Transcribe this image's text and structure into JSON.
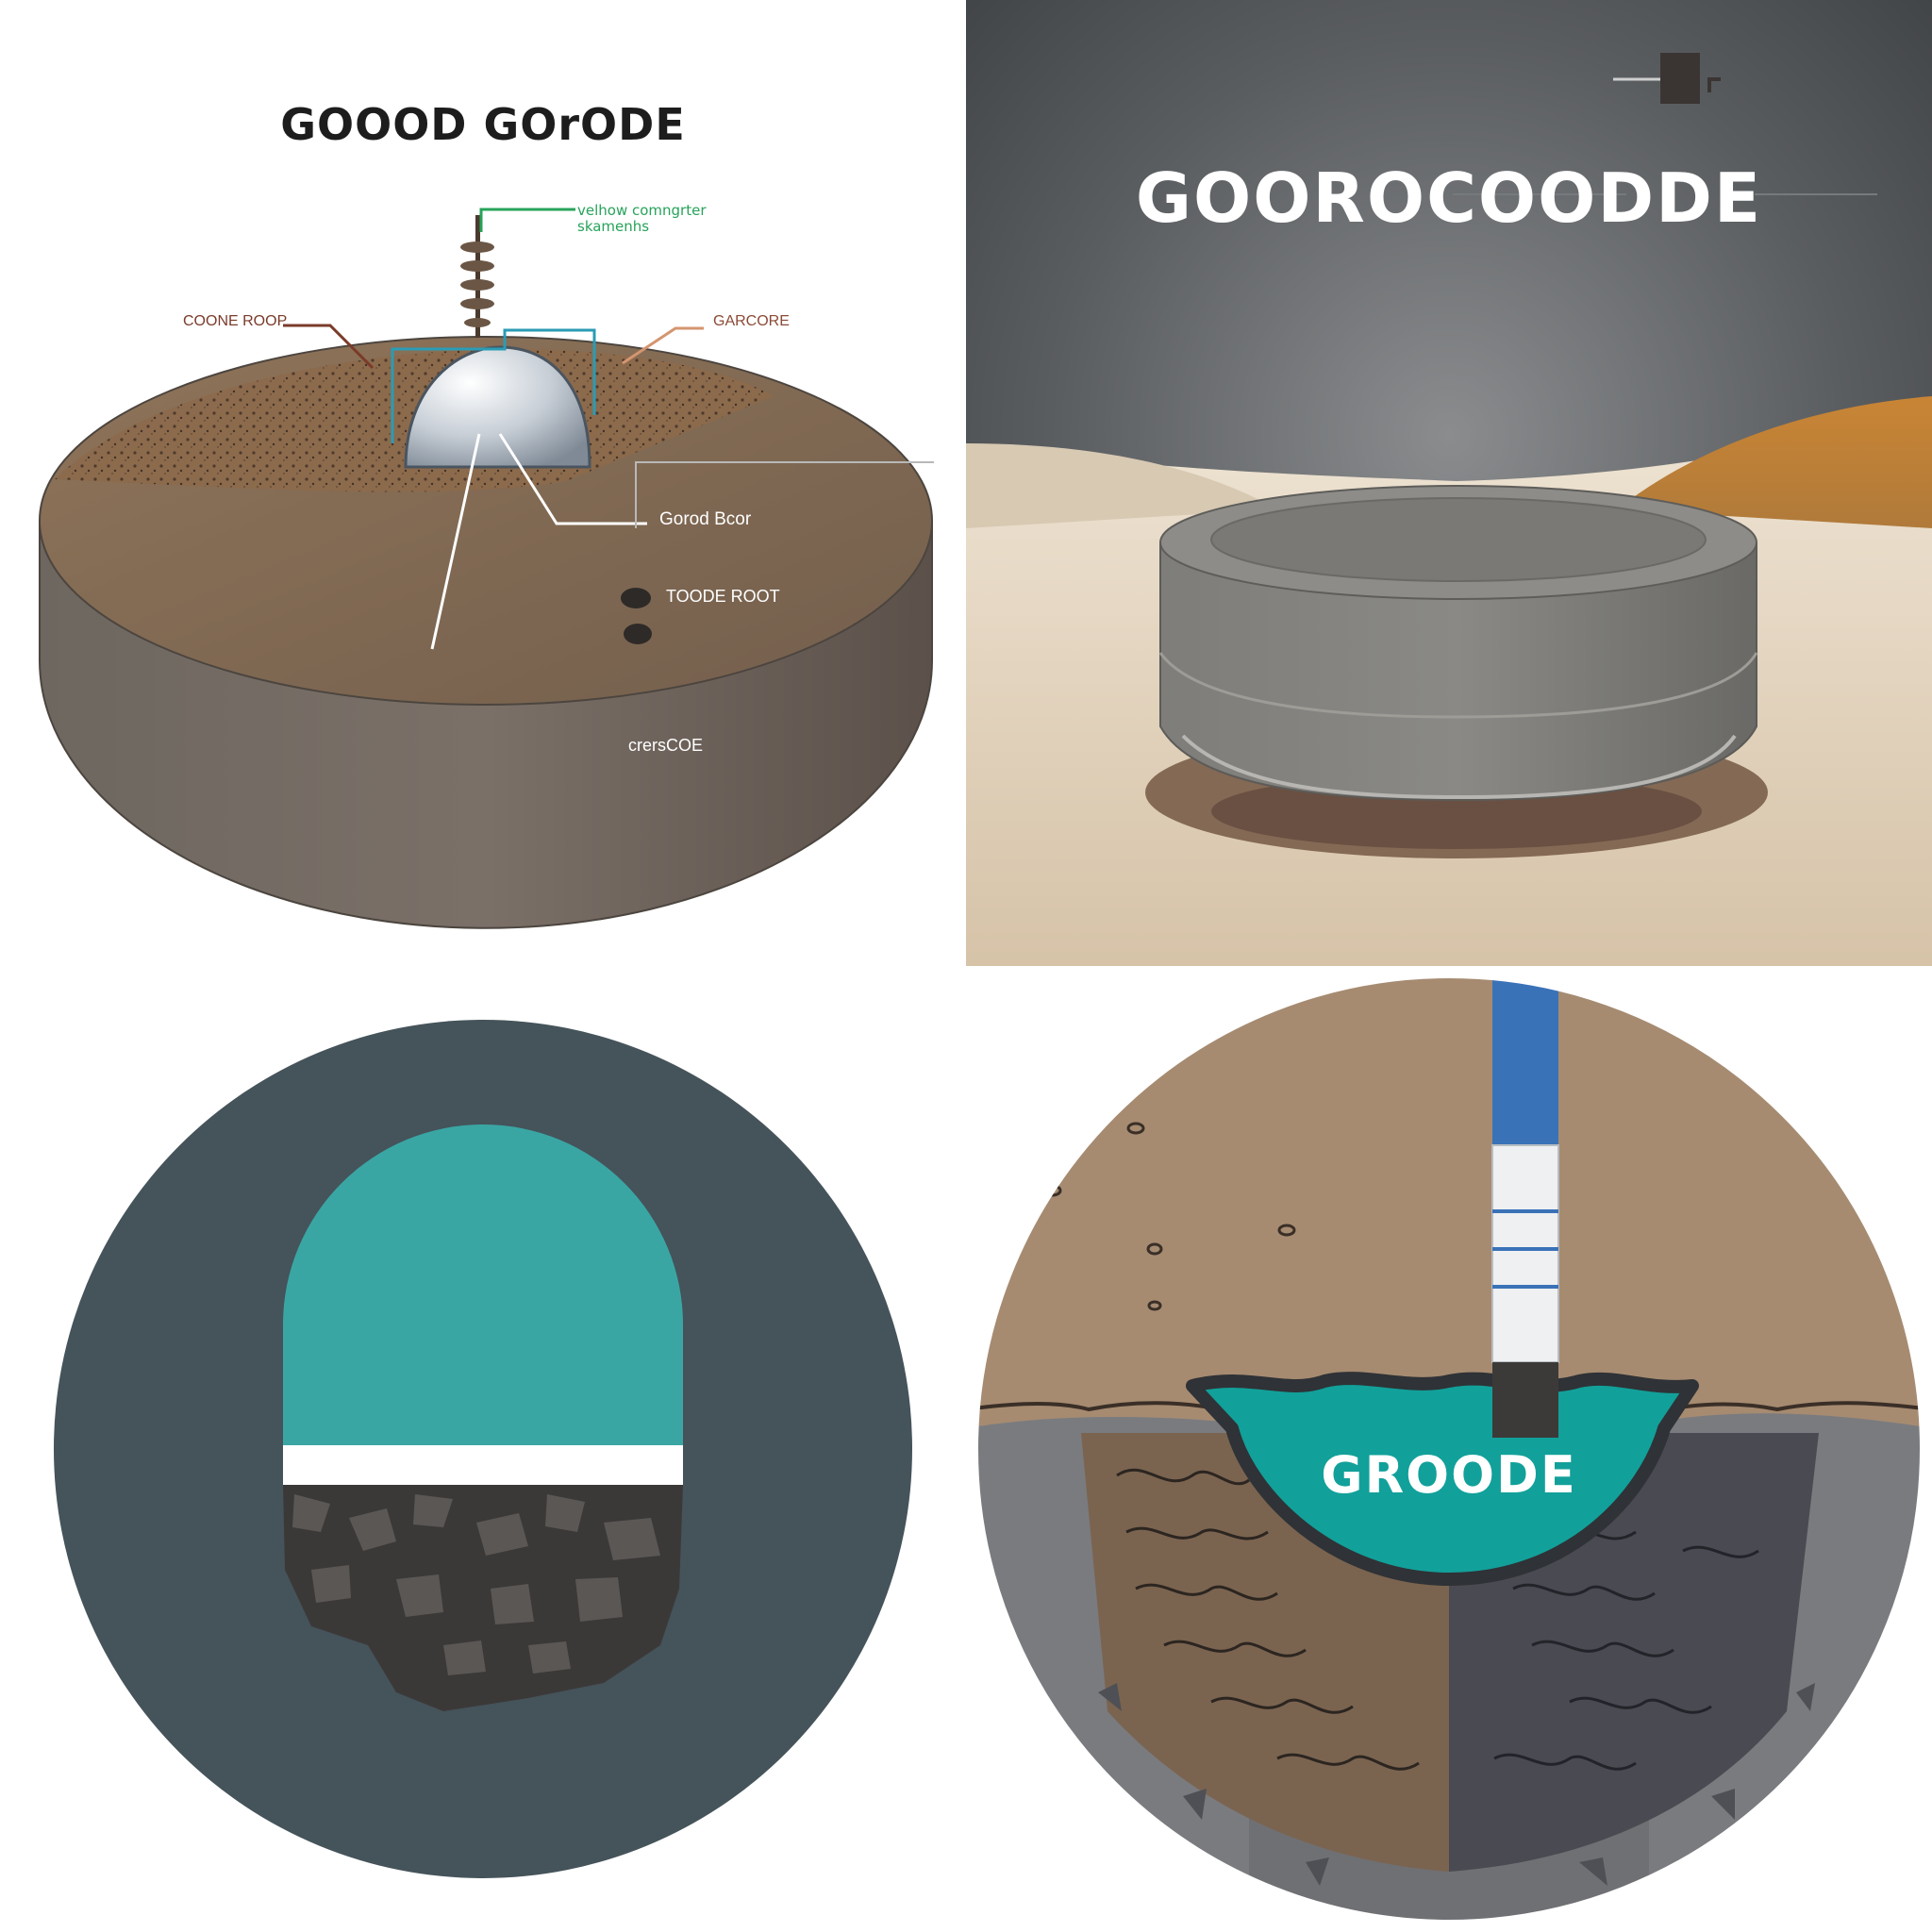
{
  "panels": {
    "top_left": {
      "title": "GOOOD GOrODE",
      "green_label_line1": "velhow comngrter",
      "green_label_line2": "skamenhs",
      "label_left": "COONE ROOP",
      "label_right": "GARCORE",
      "label_gorod": "Gorod Bcor",
      "label_toode": "TOODE ROOT",
      "label_crer": "crersCOE"
    },
    "top_right": {
      "title": "GOOROCOODDE"
    },
    "bottom_left": {},
    "bottom_right": {
      "title": "GROODE"
    }
  },
  "colors": {
    "soil_light": "#8a6b52",
    "soil_dark": "#6f6257",
    "teal": "#3aa6a4",
    "teal_bright": "#12a09a",
    "dark_slate": "#45535a",
    "concrete": "#7b7b79",
    "pipe_blue": "#3a72b8"
  }
}
